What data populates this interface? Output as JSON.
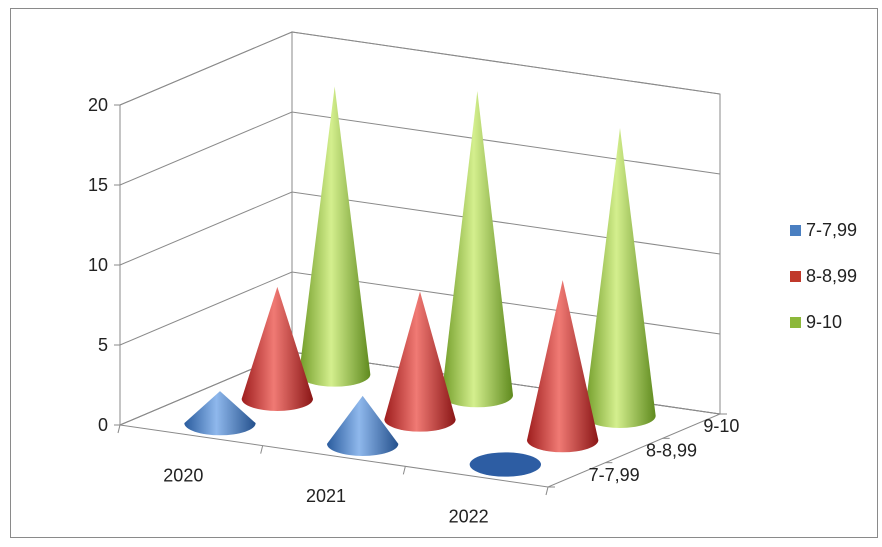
{
  "chart_data": {
    "type": "bar",
    "subtype": "3d-cone",
    "title": "",
    "xlabel": "",
    "ylabel": "",
    "ylim": [
      0,
      20
    ],
    "yticks": [
      "0",
      "5",
      "10",
      "15",
      "20"
    ],
    "categories": [
      "2020",
      "2021",
      "2022"
    ],
    "depth_labels": [
      "9-10",
      "8-8,99",
      "7-7,99"
    ],
    "series": [
      {
        "name": "7-7,99",
        "color": "#4a7fc1",
        "values": [
          2,
          3,
          0
        ]
      },
      {
        "name": "8-8,99",
        "color": "#c0392b",
        "values": [
          7,
          8,
          10
        ]
      },
      {
        "name": "9-10",
        "color": "#8cb83a",
        "values": [
          18,
          19,
          18
        ]
      }
    ],
    "grid": true,
    "legend_position": "right"
  }
}
